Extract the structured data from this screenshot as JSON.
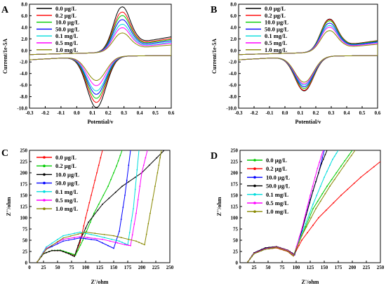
{
  "figure": {
    "description_labels": [
      "A",
      "B",
      "C",
      "D"
    ]
  },
  "chart_data": [
    {
      "panel": "A",
      "type": "line",
      "xlabel": "Potential/v",
      "ylabel": "Current/1e-5A",
      "xlim": [
        -0.3,
        0.6
      ],
      "ylim": [
        -10,
        8
      ],
      "xticks": [
        -0.3,
        -0.2,
        -0.1,
        0.0,
        0.1,
        0.2,
        0.3,
        0.4,
        0.5,
        0.6
      ],
      "yticks": [
        -10,
        -8,
        -6,
        -4,
        -2,
        0,
        2,
        4,
        6,
        8
      ],
      "ytick_labels": [
        "-10.0",
        "-8.0",
        "-6.0",
        "-4.0",
        "-2.0",
        "0.0",
        "2.0",
        "4.0",
        "6.0",
        "8.0"
      ],
      "xtick_labels": [
        "-0.3",
        "-0.2",
        "-0.1",
        "0.0",
        "0.1",
        "0.2",
        "0.3",
        "0.4",
        "0.5",
        "0.6"
      ],
      "legend_position": "top-left",
      "grid": false,
      "series": [
        {
          "name": "0.0 μg/L",
          "color": "#000000",
          "peak": 7.8,
          "trough": -8.9
        },
        {
          "name": "0.2 μg/L",
          "color": "#ff0000",
          "peak": 6.9,
          "trough": -8.0
        },
        {
          "name": "10.0 μg/L",
          "color": "#00cc00",
          "peak": 6.3,
          "trough": -7.3
        },
        {
          "name": "50.0 μg/L",
          "color": "#0000ff",
          "peak": 5.6,
          "trough": -6.6
        },
        {
          "name": "0.1 mg/L",
          "color": "#00dddd",
          "peak": 4.8,
          "trough": -6.0
        },
        {
          "name": "0.5 mg/L",
          "color": "#ff00ff",
          "peak": 4.2,
          "trough": -5.1
        },
        {
          "name": "1.0 mg/L",
          "color": "#888800",
          "peak": 3.3,
          "trough": -4.2
        }
      ]
    },
    {
      "panel": "B",
      "type": "line",
      "xlabel": "Potential/v",
      "ylabel": "Current/1e-5A",
      "xlim": [
        -0.3,
        0.6
      ],
      "ylim": [
        -10,
        8
      ],
      "xticks": [
        -0.3,
        -0.2,
        -0.1,
        0.0,
        0.1,
        0.2,
        0.3,
        0.4,
        0.5,
        0.6
      ],
      "yticks": [
        -10,
        -8,
        -6,
        -4,
        -2,
        0,
        2,
        4,
        6,
        8
      ],
      "ytick_labels": [
        "-10.0",
        "-8.0",
        "-6.0",
        "-4.0",
        "-2.0",
        "0.0",
        "2.0",
        "4.0",
        "6.0",
        "8.0"
      ],
      "xtick_labels": [
        "-0.3",
        "-0.2",
        "-0.1",
        "0.0",
        "0.1",
        "0.2",
        "0.3",
        "0.4",
        "0.5",
        "0.6"
      ],
      "legend_position": "top-left",
      "grid": false,
      "series": [
        {
          "name": "0.0 μg/L",
          "color": "#000000",
          "peak": 5.7,
          "trough": -6.0
        },
        {
          "name": "0.2 μg/L",
          "color": "#ff0000",
          "peak": 5.6,
          "trough": -5.9
        },
        {
          "name": "10.0 μg/L",
          "color": "#00cc00",
          "peak": 5.4,
          "trough": -5.6
        },
        {
          "name": "50.0 μg/L",
          "color": "#0000ff",
          "peak": 5.0,
          "trough": -5.3
        },
        {
          "name": "0.1 mg/L",
          "color": "#00dddd",
          "peak": 4.6,
          "trough": -5.0
        },
        {
          "name": "0.5 mg/L",
          "color": "#ff00ff",
          "peak": 4.3,
          "trough": -4.8
        },
        {
          "name": "1.0 mg/L",
          "color": "#888800",
          "peak": 3.7,
          "trough": -4.5
        }
      ]
    },
    {
      "panel": "C",
      "type": "line",
      "xlabel": "Z'/ohm",
      "ylabel": "Z''/ohm",
      "xlim": [
        0,
        250
      ],
      "ylim": [
        0,
        250
      ],
      "xticks": [
        0,
        25,
        50,
        75,
        100,
        125,
        150,
        175,
        200,
        225,
        250
      ],
      "yticks": [
        0,
        25,
        50,
        75,
        100,
        125,
        150,
        175,
        200,
        225,
        250
      ],
      "legend_position": "top-left",
      "grid": false,
      "series": [
        {
          "name": "0.0 μg/L",
          "color": "#ff0000",
          "points": [
            [
              14,
              2
            ],
            [
              25,
              20
            ],
            [
              40,
              27
            ],
            [
              55,
              27
            ],
            [
              70,
              20
            ],
            [
              80,
              15
            ],
            [
              90,
              45
            ],
            [
              100,
              100
            ],
            [
              110,
              150
            ],
            [
              120,
              200
            ],
            [
              130,
              250
            ]
          ]
        },
        {
          "name": "0.2 μg/L",
          "color": "#00cc00",
          "points": [
            [
              14,
              2
            ],
            [
              25,
              20
            ],
            [
              40,
              27
            ],
            [
              55,
              28
            ],
            [
              70,
              22
            ],
            [
              82,
              17
            ],
            [
              95,
              50
            ],
            [
              115,
              110
            ],
            [
              140,
              170
            ],
            [
              155,
              215
            ],
            [
              165,
              250
            ]
          ]
        },
        {
          "name": "10.0 μg/L",
          "color": "#000000",
          "points": [
            [
              14,
              2
            ],
            [
              25,
              20
            ],
            [
              40,
              27
            ],
            [
              55,
              27
            ],
            [
              70,
              20
            ],
            [
              80,
              14
            ],
            [
              90,
              50
            ],
            [
              105,
              90
            ],
            [
              130,
              130
            ],
            [
              165,
              170
            ],
            [
              200,
              200
            ],
            [
              240,
              250
            ]
          ]
        },
        {
          "name": "50.0 μg/L",
          "color": "#0000ff",
          "points": [
            [
              14,
              2
            ],
            [
              30,
              30
            ],
            [
              60,
              48
            ],
            [
              90,
              55
            ],
            [
              120,
              50
            ],
            [
              150,
              32
            ],
            [
              160,
              70
            ],
            [
              170,
              150
            ],
            [
              180,
              250
            ]
          ]
        },
        {
          "name": "0.1 mg/L",
          "color": "#00dddd",
          "points": [
            [
              14,
              2
            ],
            [
              30,
              35
            ],
            [
              60,
              60
            ],
            [
              90,
              68
            ],
            [
              120,
              60
            ],
            [
              160,
              48
            ],
            [
              175,
              40
            ],
            [
              185,
              120
            ],
            [
              195,
              250
            ]
          ]
        },
        {
          "name": "0.5 mg/L",
          "color": "#ff00ff",
          "points": [
            [
              14,
              2
            ],
            [
              30,
              32
            ],
            [
              60,
              52
            ],
            [
              90,
              58
            ],
            [
              130,
              52
            ],
            [
              170,
              40
            ],
            [
              180,
              38
            ],
            [
              190,
              110
            ],
            [
              200,
              200
            ],
            [
              210,
              250
            ]
          ]
        },
        {
          "name": "1.0 mg/L",
          "color": "#888800",
          "points": [
            [
              14,
              2
            ],
            [
              30,
              30
            ],
            [
              60,
              55
            ],
            [
              100,
              68
            ],
            [
              150,
              60
            ],
            [
              190,
              48
            ],
            [
              205,
              40
            ],
            [
              215,
              110
            ],
            [
              228,
              200
            ],
            [
              235,
              250
            ]
          ]
        }
      ]
    },
    {
      "panel": "D",
      "type": "line",
      "xlabel": "Z'/ohm",
      "ylabel": "Z''/ohm",
      "xlim": [
        0,
        250
      ],
      "ylim": [
        0,
        250
      ],
      "xticks": [
        0,
        25,
        50,
        75,
        100,
        125,
        150,
        175,
        200,
        225,
        250
      ],
      "yticks": [
        0,
        25,
        50,
        75,
        100,
        125,
        150,
        175,
        200,
        225,
        250
      ],
      "legend_position": "top-left",
      "grid": false,
      "series": [
        {
          "name": "0.0 μg/L",
          "color": "#00cc00",
          "points": [
            [
              14,
              2
            ],
            [
              25,
              20
            ],
            [
              45,
              30
            ],
            [
              65,
              33
            ],
            [
              85,
              25
            ],
            [
              95,
              15
            ],
            [
              110,
              60
            ],
            [
              130,
              120
            ],
            [
              155,
              170
            ],
            [
              180,
              215
            ],
            [
              200,
              250
            ]
          ]
        },
        {
          "name": "0.2 μg/L",
          "color": "#ff0000",
          "points": [
            [
              14,
              2
            ],
            [
              25,
              20
            ],
            [
              45,
              30
            ],
            [
              65,
              33
            ],
            [
              85,
              25
            ],
            [
              95,
              15
            ],
            [
              110,
              50
            ],
            [
              140,
              100
            ],
            [
              180,
              150
            ],
            [
              215,
              190
            ],
            [
              250,
              225
            ]
          ]
        },
        {
          "name": "10.0 μg/L",
          "color": "#0000ff",
          "points": [
            [
              14,
              2
            ],
            [
              25,
              22
            ],
            [
              45,
              33
            ],
            [
              65,
              35
            ],
            [
              85,
              27
            ],
            [
              97,
              17
            ],
            [
              110,
              70
            ],
            [
              125,
              140
            ],
            [
              140,
              200
            ],
            [
              150,
              250
            ]
          ]
        },
        {
          "name": "50.0 μg/L",
          "color": "#000000",
          "points": [
            [
              14,
              2
            ],
            [
              25,
              22
            ],
            [
              45,
              33
            ],
            [
              65,
              36
            ],
            [
              85,
              28
            ],
            [
              97,
              18
            ],
            [
              112,
              80
            ],
            [
              130,
              160
            ],
            [
              145,
              220
            ],
            [
              155,
              250
            ]
          ]
        },
        {
          "name": "0.1 mg/L",
          "color": "#00dddd",
          "points": [
            [
              14,
              2
            ],
            [
              25,
              20
            ],
            [
              45,
              30
            ],
            [
              65,
              34
            ],
            [
              85,
              26
            ],
            [
              95,
              16
            ],
            [
              110,
              65
            ],
            [
              130,
              130
            ],
            [
              150,
              190
            ],
            [
              165,
              230
            ],
            [
              175,
              250
            ]
          ]
        },
        {
          "name": "0.5 mg/L",
          "color": "#ff00ff",
          "points": [
            [
              14,
              2
            ],
            [
              25,
              21
            ],
            [
              45,
              31
            ],
            [
              65,
              35
            ],
            [
              85,
              27
            ],
            [
              96,
              17
            ],
            [
              110,
              75
            ],
            [
              125,
              150
            ],
            [
              138,
              210
            ],
            [
              148,
              250
            ]
          ]
        },
        {
          "name": "1.0 mg/L",
          "color": "#888800",
          "points": [
            [
              14,
              2
            ],
            [
              25,
              20
            ],
            [
              45,
              30
            ],
            [
              65,
              34
            ],
            [
              85,
              26
            ],
            [
              95,
              16
            ],
            [
              110,
              60
            ],
            [
              135,
              120
            ],
            [
              160,
              170
            ],
            [
              185,
              215
            ],
            [
              205,
              250
            ]
          ]
        }
      ]
    }
  ]
}
